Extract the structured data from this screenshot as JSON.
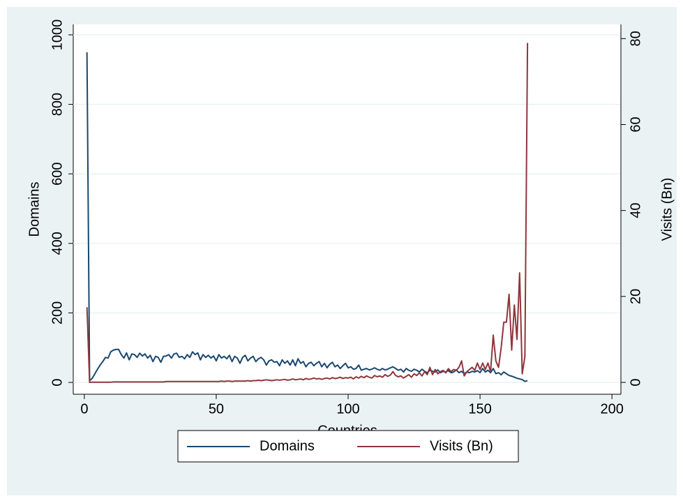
{
  "chart_data": {
    "type": "line",
    "x_label": "Countries",
    "y_label": "Domains",
    "y2_label": "Visits (Bn)",
    "x": [
      1,
      2,
      3,
      4,
      5,
      6,
      7,
      8,
      9,
      10,
      11,
      12,
      13,
      14,
      15,
      16,
      17,
      18,
      19,
      20,
      21,
      22,
      23,
      24,
      25,
      26,
      27,
      28,
      29,
      30,
      31,
      32,
      33,
      34,
      35,
      36,
      37,
      38,
      39,
      40,
      41,
      42,
      43,
      44,
      45,
      46,
      47,
      48,
      49,
      50,
      51,
      52,
      53,
      54,
      55,
      56,
      57,
      58,
      59,
      60,
      61,
      62,
      63,
      64,
      65,
      66,
      67,
      68,
      69,
      70,
      71,
      72,
      73,
      74,
      75,
      76,
      77,
      78,
      79,
      80,
      81,
      82,
      83,
      84,
      85,
      86,
      87,
      88,
      89,
      90,
      91,
      92,
      93,
      94,
      95,
      96,
      97,
      98,
      99,
      100,
      101,
      102,
      103,
      104,
      105,
      106,
      107,
      108,
      109,
      110,
      111,
      112,
      113,
      114,
      115,
      116,
      117,
      118,
      119,
      120,
      121,
      122,
      123,
      124,
      125,
      126,
      127,
      128,
      129,
      130,
      131,
      132,
      133,
      134,
      135,
      136,
      137,
      138,
      139,
      140,
      141,
      142,
      143,
      144,
      145,
      146,
      147,
      148,
      149,
      150,
      151,
      152,
      153,
      154,
      155,
      156,
      157,
      158,
      159,
      160,
      161,
      162,
      163,
      164,
      165,
      166,
      167,
      168
    ],
    "series": [
      {
        "name": "Domains",
        "color": "#1a476f",
        "values": [
          950,
          5,
          12,
          25,
          38,
          50,
          60,
          72,
          70,
          88,
          93,
          95,
          95,
          80,
          70,
          85,
          65,
          82,
          80,
          72,
          84,
          76,
          82,
          70,
          78,
          60,
          75,
          72,
          58,
          75,
          76,
          80,
          70,
          82,
          84,
          72,
          75,
          68,
          80,
          72,
          88,
          80,
          85,
          65,
          80,
          72,
          78,
          70,
          76,
          62,
          80,
          70,
          75,
          68,
          78,
          60,
          75,
          70,
          55,
          72,
          78,
          62,
          70,
          75,
          60,
          68,
          72,
          65,
          50,
          62,
          65,
          58,
          60,
          48,
          65,
          55,
          62,
          50,
          65,
          48,
          68,
          55,
          60,
          45,
          55,
          58,
          48,
          55,
          60,
          45,
          55,
          42,
          52,
          58,
          45,
          50,
          40,
          48,
          55,
          42,
          45,
          38,
          40,
          50,
          35,
          38,
          40,
          36,
          38,
          42,
          38,
          35,
          40,
          36,
          38,
          42,
          45,
          40,
          35,
          38,
          30,
          40,
          35,
          32,
          38,
          35,
          30,
          38,
          32,
          28,
          35,
          32,
          30,
          36,
          28,
          32,
          30,
          34,
          28,
          30,
          36,
          28,
          32,
          25,
          30,
          28,
          32,
          30,
          34,
          28,
          40,
          30,
          35,
          28,
          40,
          25,
          28,
          22,
          30,
          25,
          20,
          18,
          15,
          12,
          10,
          8,
          3,
          5
        ]
      },
      {
        "name": "Visits (Bn)",
        "color": "#90353b",
        "axis": "y2",
        "values": [
          17.5,
          0,
          0.05,
          0.05,
          0.05,
          0.05,
          0.05,
          0.05,
          0.05,
          0.05,
          0.1,
          0.1,
          0.1,
          0.1,
          0.1,
          0.1,
          0.1,
          0.1,
          0.1,
          0.1,
          0.1,
          0.1,
          0.1,
          0.1,
          0.1,
          0.1,
          0.1,
          0.1,
          0.1,
          0.1,
          0.2,
          0.2,
          0.2,
          0.2,
          0.2,
          0.2,
          0.2,
          0.2,
          0.2,
          0.2,
          0.2,
          0.2,
          0.2,
          0.2,
          0.2,
          0.2,
          0.2,
          0.2,
          0.2,
          0.2,
          0.2,
          0.3,
          0.2,
          0.3,
          0.3,
          0.2,
          0.3,
          0.3,
          0.3,
          0.3,
          0.3,
          0.4,
          0.3,
          0.4,
          0.4,
          0.5,
          0.4,
          0.5,
          0.6,
          0.5,
          0.4,
          0.5,
          0.6,
          0.5,
          0.6,
          0.7,
          0.5,
          0.6,
          0.8,
          0.6,
          0.7,
          0.8,
          0.6,
          0.9,
          0.7,
          0.8,
          1.0,
          0.8,
          0.9,
          0.7,
          0.9,
          1.0,
          0.8,
          1.1,
          0.9,
          1.0,
          1.2,
          0.9,
          1.1,
          1.0,
          1.2,
          0.8,
          1.3,
          1.0,
          1.4,
          1.1,
          1.5,
          1.2,
          1.0,
          1.6,
          1.3,
          1.5,
          1.2,
          1.8,
          1.4,
          1.7,
          2.5,
          1.6,
          1.3,
          1.5,
          1.0,
          1.4,
          1.8,
          1.2,
          2.0,
          1.6,
          2.2,
          1.5,
          2.5,
          1.8,
          3.5,
          1.8,
          3.0,
          2.0,
          2.5,
          2.8,
          2.2,
          3.2,
          2.5,
          3.0,
          2.8,
          3.5,
          5.0,
          1.5,
          2.5,
          3.0,
          3.5,
          2.8,
          4.5,
          3.0,
          4.5,
          3.0,
          4.5,
          2.5,
          11,
          5,
          3.5,
          8,
          14,
          14,
          20.5,
          7.5,
          18,
          10,
          25.5,
          2,
          6,
          79
        ]
      }
    ],
    "xlim": [
      -4.2,
      203.4
    ],
    "xticks": [
      0,
      50,
      100,
      150,
      200
    ],
    "ylim": [
      -34,
      1030
    ],
    "yticks": [
      0,
      200,
      400,
      600,
      800,
      1000
    ],
    "y2lim": [
      -2.76,
      83.3
    ],
    "y2ticks": [
      0,
      20,
      40,
      60,
      80
    ],
    "grid": true,
    "legend": "bottom"
  }
}
